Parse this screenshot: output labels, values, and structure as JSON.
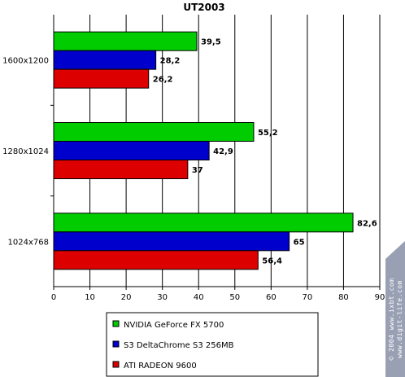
{
  "chart_data": {
    "type": "bar",
    "orientation": "horizontal",
    "title": "UT2003",
    "categories": [
      "1600x1200",
      "1280x1024",
      "1024x768"
    ],
    "series": [
      {
        "name": "NVIDIA GeForce FX 5700",
        "color": "#00cc00",
        "values": [
          39.5,
          55.2,
          82.6
        ],
        "labels": [
          "39,5",
          "55,2",
          "82,6"
        ]
      },
      {
        "name": "S3 DeltaChrome S3 256MB",
        "color": "#0000cc",
        "values": [
          28.2,
          42.9,
          65
        ],
        "labels": [
          "28,2",
          "42,9",
          "65"
        ]
      },
      {
        "name": "ATI RADEON 9600",
        "color": "#dd0000",
        "values": [
          26.2,
          37,
          56.4
        ],
        "labels": [
          "26,2",
          "37",
          "56,4"
        ]
      }
    ],
    "xlim": [
      0,
      90
    ],
    "xticks": [
      "0",
      "10",
      "20",
      "30",
      "40",
      "50",
      "60",
      "70",
      "80",
      "90"
    ],
    "grid": true,
    "legend_position": "bottom"
  },
  "watermark": {
    "lines": [
      "© 2004 www.ixbt.com",
      "www.digit-life.com"
    ]
  }
}
